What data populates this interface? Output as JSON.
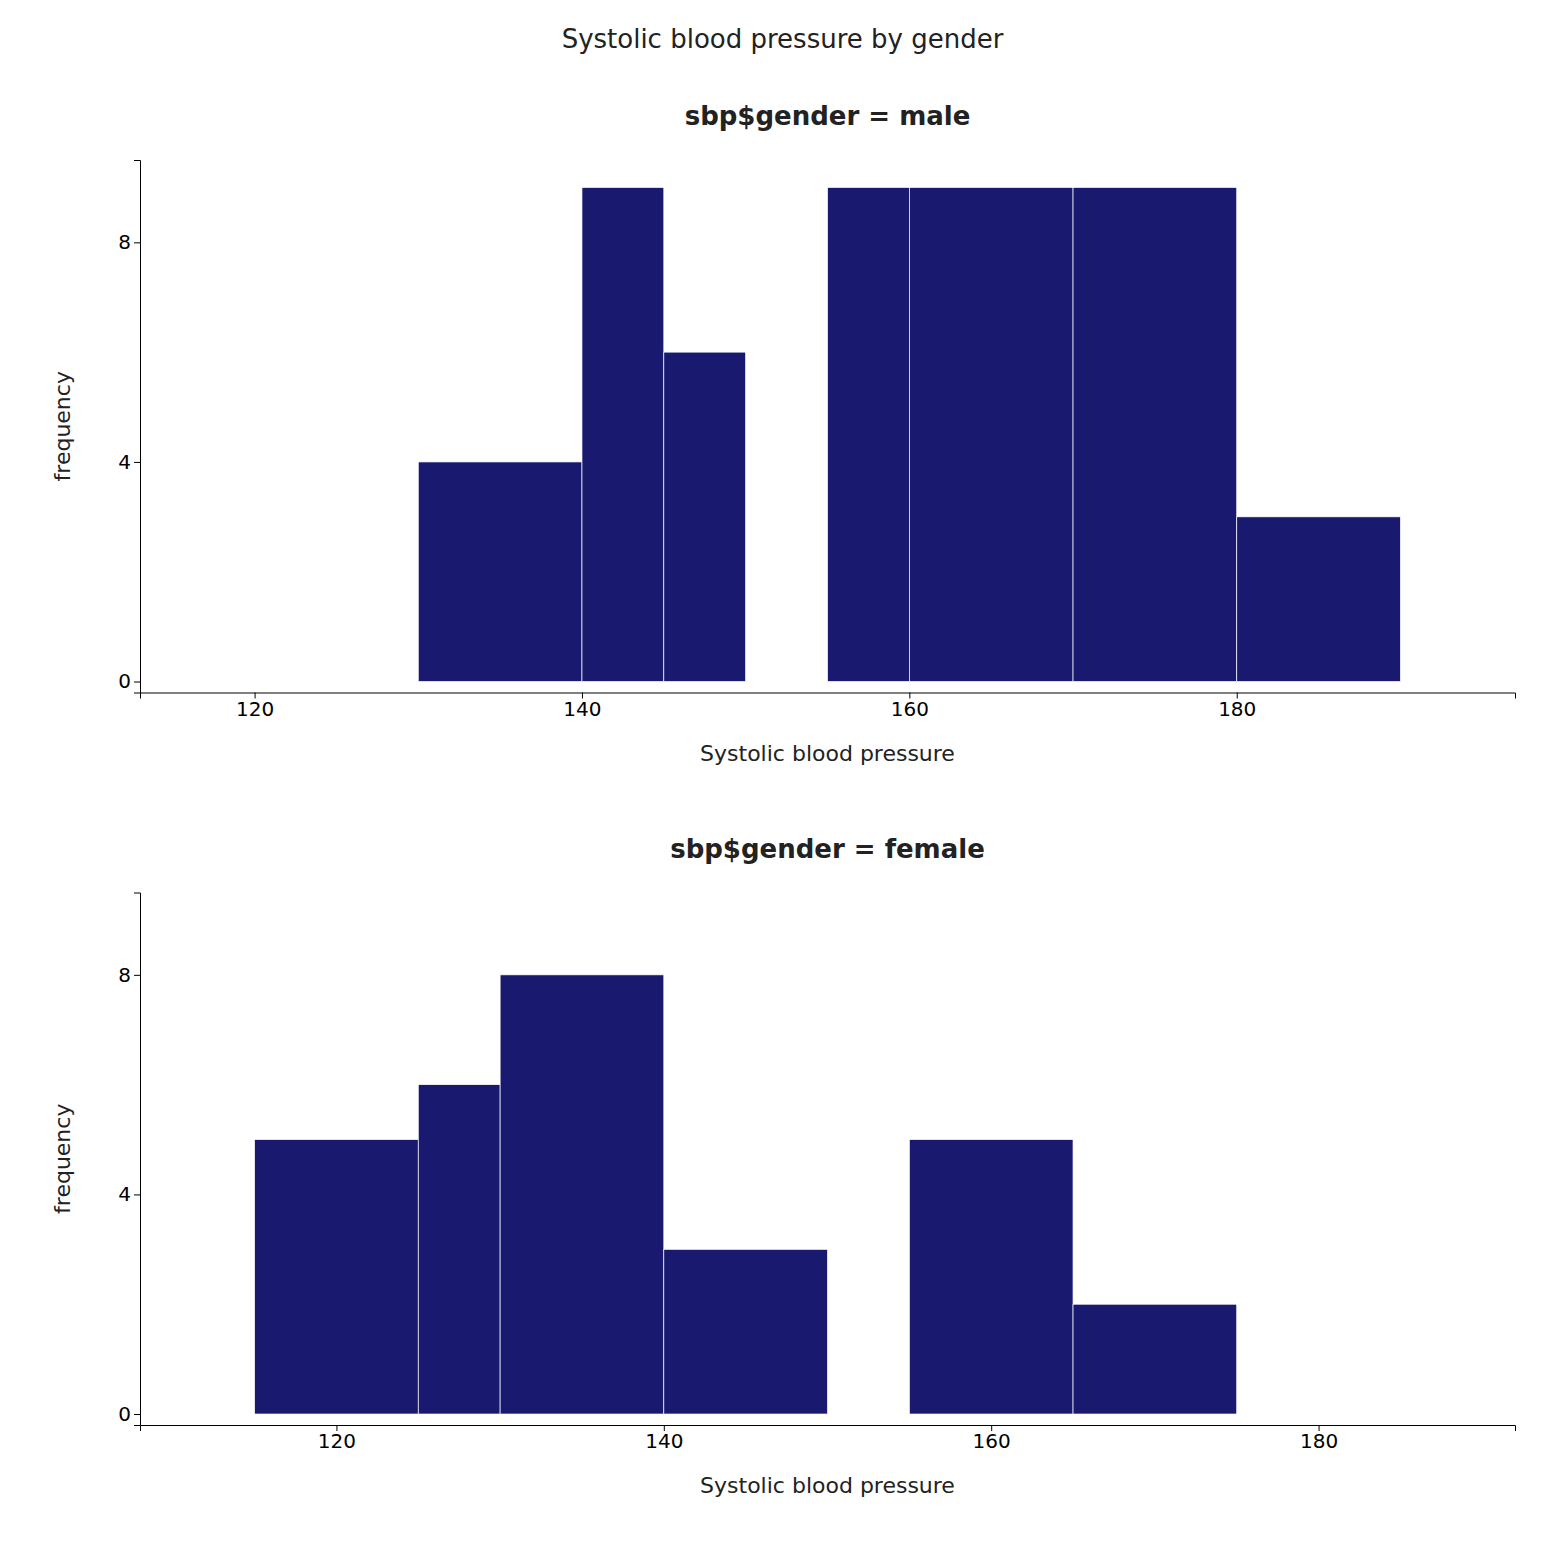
{
  "title": "Systolic blood pressure by gender",
  "chart_data": [
    {
      "type": "histogram",
      "title": "sbp$gender = male",
      "xlabel": "Systolic blood pressure",
      "ylabel": "frequency",
      "bins": [
        130,
        140,
        145,
        150,
        155,
        160,
        170,
        180,
        190
      ],
      "values": [
        4,
        9,
        6,
        0,
        9,
        9,
        9,
        3
      ],
      "color": "#191970",
      "xlim": [
        113,
        197
      ],
      "ylim": [
        -0.2,
        9.5
      ],
      "xticks": [
        120,
        140,
        160,
        180
      ],
      "yticks": [
        0,
        4,
        8
      ]
    },
    {
      "type": "histogram",
      "title": "sbp$gender = female",
      "xlabel": "Systolic blood pressure",
      "ylabel": "frequency",
      "bins": [
        115,
        125,
        130,
        140,
        150,
        155,
        165,
        175,
        185
      ],
      "values": [
        5,
        6,
        8,
        3,
        0,
        5,
        2,
        0
      ],
      "color": "#191970",
      "xlim": [
        108,
        192
      ],
      "ylim": [
        -0.2,
        9.5
      ],
      "xticks": [
        120,
        140,
        160,
        180
      ],
      "yticks": [
        0,
        4,
        8
      ]
    }
  ]
}
